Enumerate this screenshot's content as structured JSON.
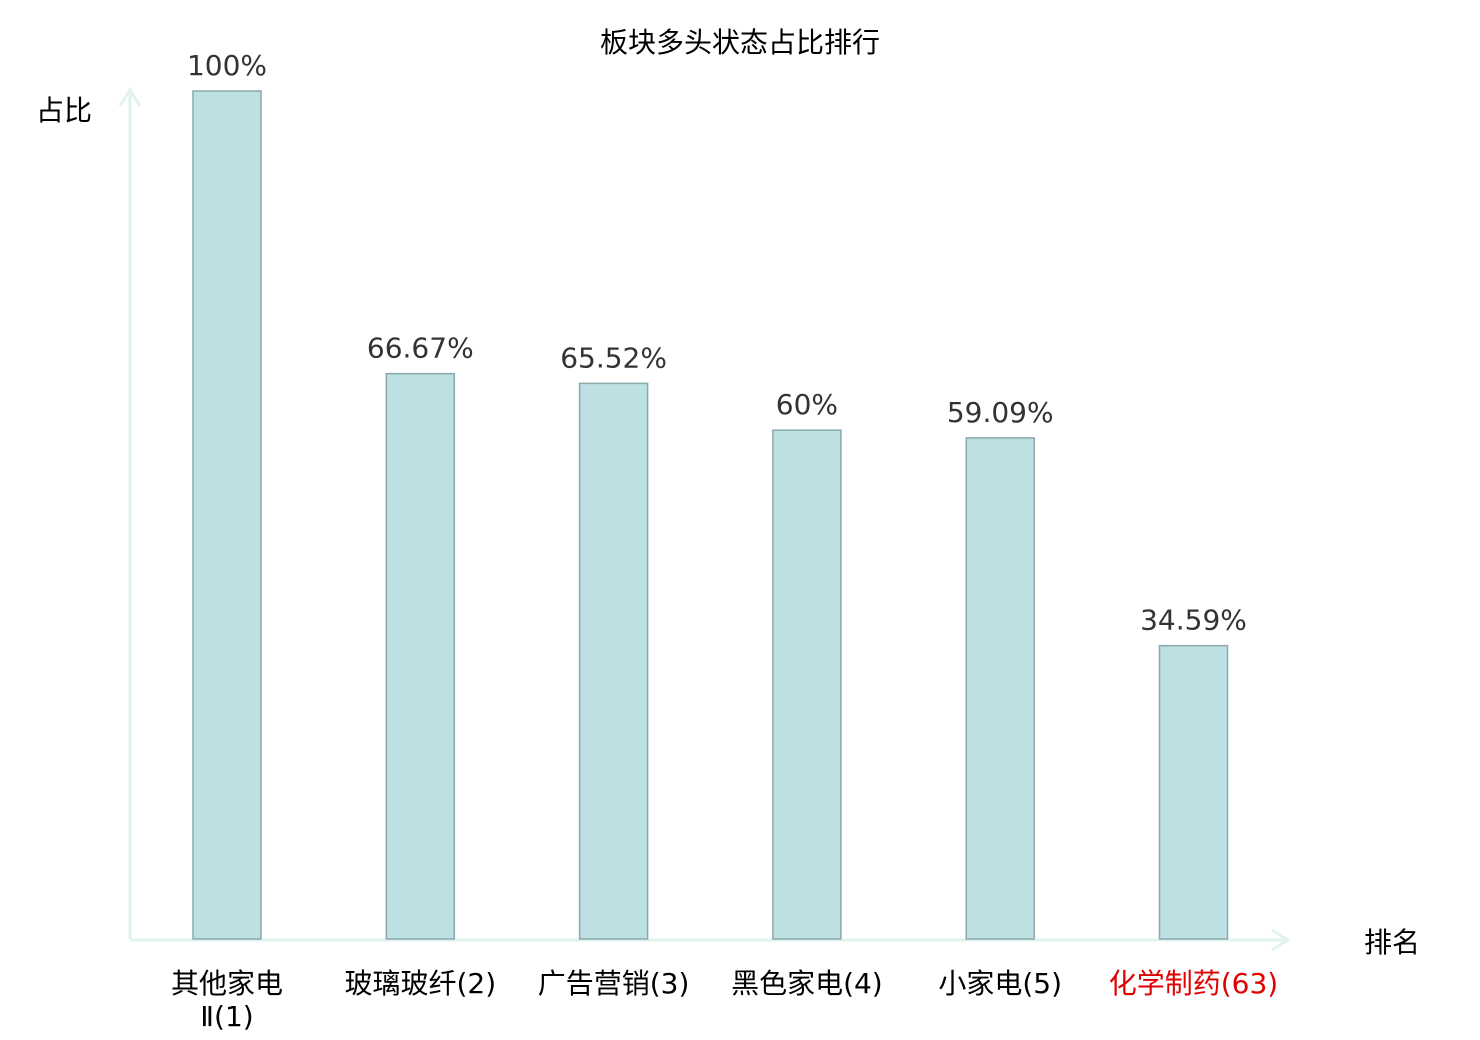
{
  "chart_data": {
    "type": "bar",
    "title": "板块多头状态占比排行",
    "ylabel": "占比",
    "xlabel": "排名",
    "categories": [
      "其他家电Ⅱ(1)",
      "玻璃玻纤(2)",
      "广告营销(3)",
      "黑色家电(4)",
      "小家电(5)",
      "化学制药(63)"
    ],
    "values": [
      100,
      66.67,
      65.52,
      60,
      59.09,
      34.59
    ],
    "data_labels": [
      "100%",
      "66.67%",
      "65.52%",
      "60%",
      "59.09%",
      "34.59%"
    ],
    "highlight_index": 5,
    "ylim": [
      0,
      100
    ],
    "grid": false,
    "colors": {
      "bar_fill": "#bde0e3",
      "bar_stroke": "#8aa9ab",
      "axis": "#e0f3f1",
      "label": "#000000",
      "value_label": "#333333",
      "highlight": "#e00000"
    }
  }
}
